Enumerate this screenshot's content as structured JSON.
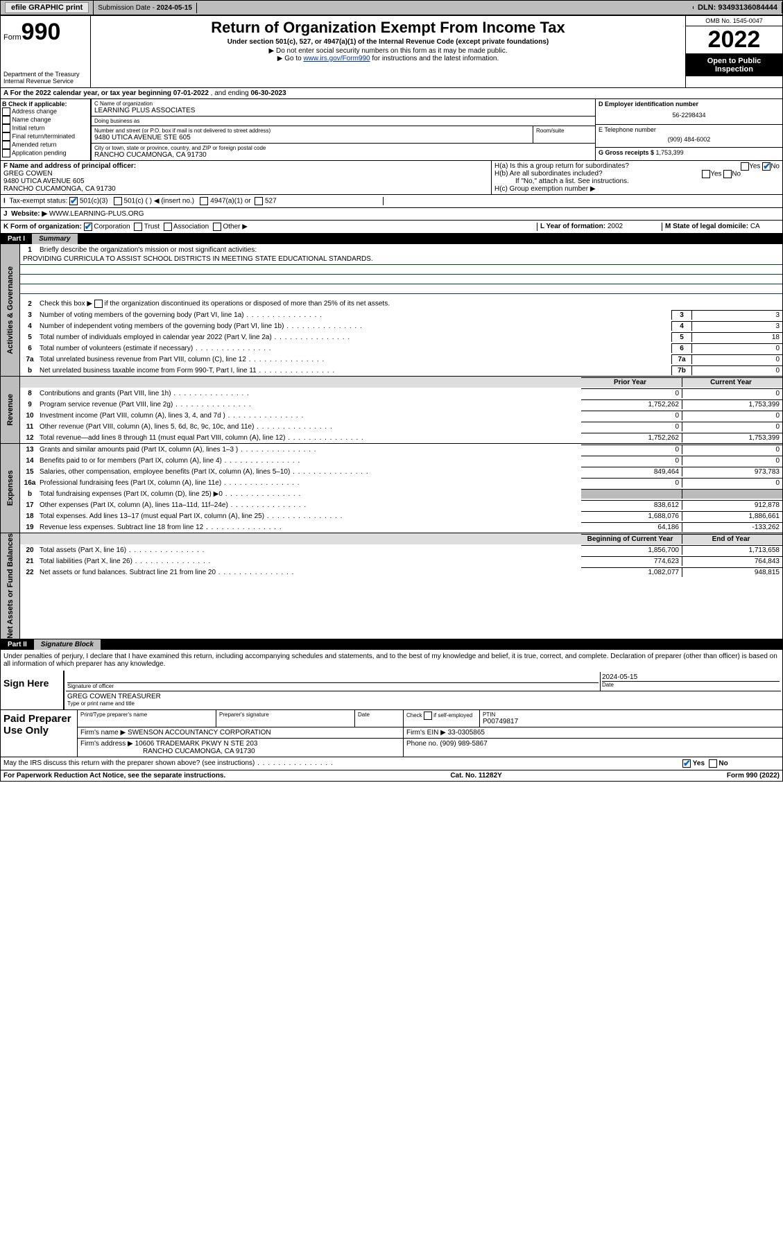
{
  "topbar": {
    "efile": "efile GRAPHIC print",
    "subdate_lbl": "Submission Date - ",
    "subdate": "2024-05-15",
    "dln_lbl": "DLN: ",
    "dln": "93493136084444"
  },
  "header": {
    "form_word": "Form",
    "form_num": "990",
    "dept": "Department of the Treasury\nInternal Revenue Service",
    "title": "Return of Organization Exempt From Income Tax",
    "sub": "Under section 501(c), 527, or 4947(a)(1) of the Internal Revenue Code (except private foundations)",
    "note1": "▶ Do not enter social security numbers on this form as it may be made public.",
    "note2_pre": "▶ Go to ",
    "note2_link": "www.irs.gov/Form990",
    "note2_post": " for instructions and the latest information.",
    "omb": "OMB No. 1545-0047",
    "year": "2022",
    "inspection": "Open to Public Inspection"
  },
  "secA": {
    "text_pre": "A For the 2022 calendar year, or tax year beginning ",
    "begin": "07-01-2022",
    "mid": " , and ending ",
    "end": "06-30-2023"
  },
  "secB": {
    "lbl": "B Check if applicable:",
    "opts": [
      "Address change",
      "Name change",
      "Initial return",
      "Final return/terminated",
      "Amended return",
      "Application pending"
    ]
  },
  "secC": {
    "name_lbl": "C Name of organization",
    "name": "LEARNING PLUS ASSOCIATES",
    "dba_lbl": "Doing business as",
    "dba": "",
    "street_lbl": "Number and street (or P.O. box if mail is not delivered to street address)",
    "room_lbl": "Room/suite",
    "street": "9480 UTICA AVENUE STE 605",
    "city_lbl": "City or town, state or province, country, and ZIP or foreign postal code",
    "city": "RANCHO CUCAMONGA, CA  91730"
  },
  "secD": {
    "lbl": "D Employer identification number",
    "val": "56-2298434"
  },
  "secE": {
    "lbl": "E Telephone number",
    "val": "(909) 484-6002"
  },
  "secG": {
    "lbl": "G Gross receipts $ ",
    "val": "1,753,399"
  },
  "secF": {
    "lbl": "F Name and address of principal officer:",
    "name": "GREG COWEN",
    "addr1": "9480 UTICA AVENUE 605",
    "addr2": "RANCHO CUCAMONGA, CA  91730"
  },
  "secH": {
    "a": "H(a)  Is this a group return for subordinates?",
    "b": "H(b)  Are all subordinates included?",
    "b_note": "If \"No,\" attach a list. See instructions.",
    "c": "H(c)  Group exemption number ▶",
    "yes": "Yes",
    "no": "No"
  },
  "secI": {
    "lbl": "Tax-exempt status:",
    "o1": "501(c)(3)",
    "o2": "501(c) (  ) ◀ (insert no.)",
    "o3": "4947(a)(1) or",
    "o4": "527"
  },
  "secJ": {
    "lbl": "Website: ▶",
    "val": "WWW.LEARNING-PLUS.ORG"
  },
  "secK": {
    "lbl": "K Form of organization:",
    "o1": "Corporation",
    "o2": "Trust",
    "o3": "Association",
    "o4": "Other ▶",
    "l_lbl": "L Year of formation: ",
    "l_val": "2002",
    "m_lbl": "M State of legal domicile: ",
    "m_val": "CA"
  },
  "part1": {
    "num": "Part I",
    "title": "Summary"
  },
  "summary": {
    "l1_lbl": "Briefly describe the organization's mission or most significant activities:",
    "l1_val": "PROVIDING CURRICULA TO ASSIST SCHOOL DISTRICTS IN MEETING STATE EDUCATIONAL STANDARDS.",
    "l2": "Check this box ▶       if the organization discontinued its operations or disposed of more than 25% of its net assets.",
    "lines_single": [
      {
        "n": "3",
        "t": "Number of voting members of the governing body (Part VI, line 1a)",
        "c": "3",
        "v": "3"
      },
      {
        "n": "4",
        "t": "Number of independent voting members of the governing body (Part VI, line 1b)",
        "c": "4",
        "v": "3"
      },
      {
        "n": "5",
        "t": "Total number of individuals employed in calendar year 2022 (Part V, line 2a)",
        "c": "5",
        "v": "18"
      },
      {
        "n": "6",
        "t": "Total number of volunteers (estimate if necessary)",
        "c": "6",
        "v": "0"
      },
      {
        "n": "7a",
        "t": "Total unrelated business revenue from Part VIII, column (C), line 12",
        "c": "7a",
        "v": "0"
      },
      {
        "n": "b",
        "t": "Net unrelated business taxable income from Form 990-T, Part I, line 11",
        "c": "7b",
        "v": "0"
      }
    ],
    "col_prior": "Prior Year",
    "col_curr": "Current Year",
    "rev": [
      {
        "n": "8",
        "t": "Contributions and grants (Part VIII, line 1h)",
        "p": "0",
        "c": "0"
      },
      {
        "n": "9",
        "t": "Program service revenue (Part VIII, line 2g)",
        "p": "1,752,262",
        "c": "1,753,399"
      },
      {
        "n": "10",
        "t": "Investment income (Part VIII, column (A), lines 3, 4, and 7d )",
        "p": "0",
        "c": "0"
      },
      {
        "n": "11",
        "t": "Other revenue (Part VIII, column (A), lines 5, 6d, 8c, 9c, 10c, and 11e)",
        "p": "0",
        "c": "0"
      },
      {
        "n": "12",
        "t": "Total revenue—add lines 8 through 11 (must equal Part VIII, column (A), line 12)",
        "p": "1,752,262",
        "c": "1,753,399"
      }
    ],
    "exp": [
      {
        "n": "13",
        "t": "Grants and similar amounts paid (Part IX, column (A), lines 1–3 )",
        "p": "0",
        "c": "0"
      },
      {
        "n": "14",
        "t": "Benefits paid to or for members (Part IX, column (A), line 4)",
        "p": "0",
        "c": "0"
      },
      {
        "n": "15",
        "t": "Salaries, other compensation, employee benefits (Part IX, column (A), lines 5–10)",
        "p": "849,464",
        "c": "973,783"
      },
      {
        "n": "16a",
        "t": "Professional fundraising fees (Part IX, column (A), line 11e)",
        "p": "0",
        "c": "0"
      },
      {
        "n": "b",
        "t": "Total fundraising expenses (Part IX, column (D), line 25) ▶0",
        "p": "",
        "c": ""
      },
      {
        "n": "17",
        "t": "Other expenses (Part IX, column (A), lines 11a–11d, 11f–24e)",
        "p": "838,612",
        "c": "912,878"
      },
      {
        "n": "18",
        "t": "Total expenses. Add lines 13–17 (must equal Part IX, column (A), line 25)",
        "p": "1,688,076",
        "c": "1,886,661"
      },
      {
        "n": "19",
        "t": "Revenue less expenses. Subtract line 18 from line 12",
        "p": "64,186",
        "c": "-133,262"
      }
    ],
    "col_begin": "Beginning of Current Year",
    "col_end": "End of Year",
    "na": [
      {
        "n": "20",
        "t": "Total assets (Part X, line 16)",
        "p": "1,856,700",
        "c": "1,713,658"
      },
      {
        "n": "21",
        "t": "Total liabilities (Part X, line 26)",
        "p": "774,623",
        "c": "764,843"
      },
      {
        "n": "22",
        "t": "Net assets or fund balances. Subtract line 21 from line 20",
        "p": "1,082,077",
        "c": "948,815"
      }
    ]
  },
  "vtabs": {
    "gov": "Activities & Governance",
    "rev": "Revenue",
    "exp": "Expenses",
    "na": "Net Assets or Fund Balances"
  },
  "part2": {
    "num": "Part II",
    "title": "Signature Block",
    "decl": "Under penalties of perjury, I declare that I have examined this return, including accompanying schedules and statements, and to the best of my knowledge and belief, it is true, correct, and complete. Declaration of preparer (other than officer) is based on all information of which preparer has any knowledge."
  },
  "sign": {
    "here": "Sign Here",
    "sig_lbl": "Signature of officer",
    "date_lbl": "Date",
    "date": "2024-05-15",
    "name": "GREG COWEN  TREASURER",
    "name_lbl": "Type or print name and title"
  },
  "paid": {
    "lbl": "Paid Preparer Use Only",
    "h1": "Print/Type preparer's name",
    "h2": "Preparer's signature",
    "h3": "Date",
    "h4": "Check        if self-employed",
    "h5_lbl": "PTIN",
    "h5": "P00749817",
    "firm_lbl": "Firm's name    ▶",
    "firm": "SWENSON ACCOUNTANCY CORPORATION",
    "ein_lbl": "Firm's EIN ▶",
    "ein": "33-0305865",
    "addr_lbl": "Firm's address ▶",
    "addr1": "10606 TRADEMARK PKWY N STE 203",
    "addr2": "RANCHO CUCAMONGA, CA  91730",
    "phone_lbl": "Phone no. ",
    "phone": "(909) 989-5867",
    "discuss": "May the IRS discuss this return with the preparer shown above? (see instructions)"
  },
  "footer": {
    "l": "For Paperwork Reduction Act Notice, see the separate instructions.",
    "m": "Cat. No. 11282Y",
    "r": "Form 990 (2022)"
  }
}
